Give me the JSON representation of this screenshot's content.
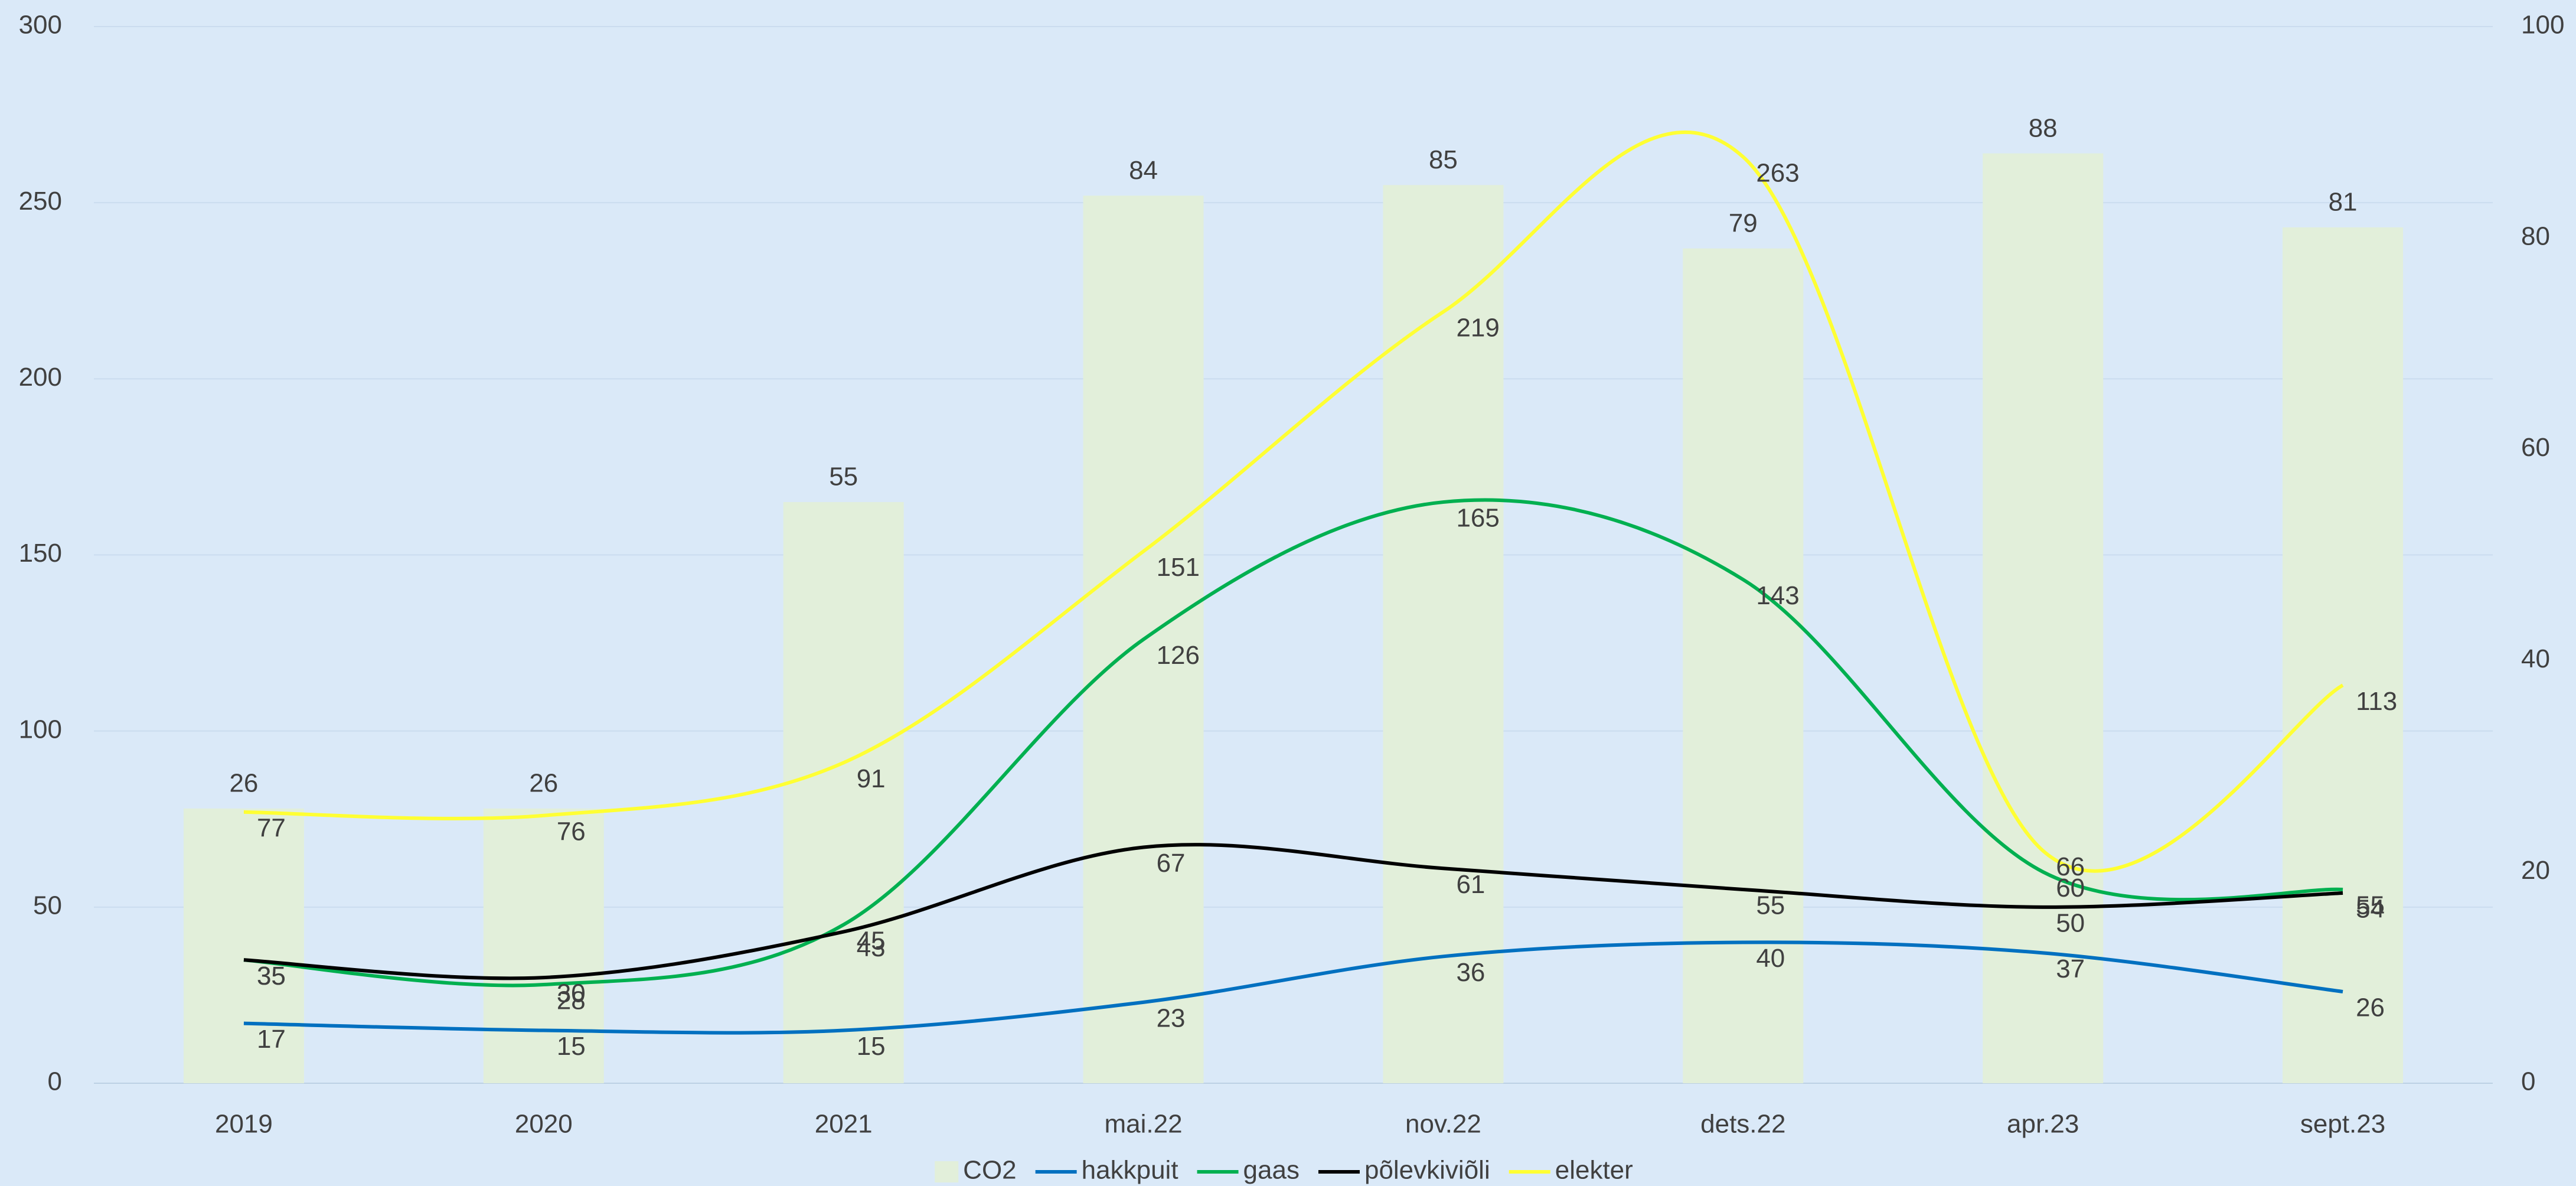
{
  "chart_data": {
    "type": "combo",
    "categories": [
      "2019",
      "2020",
      "2021",
      "mai.22",
      "nov.22",
      "dets.22",
      "apr.23",
      "sept.23"
    ],
    "series": [
      {
        "name": "CO2",
        "type": "bar",
        "axis": "y2",
        "color": "#e2efda",
        "values": [
          26,
          26,
          55,
          84,
          85,
          79,
          88,
          81
        ]
      },
      {
        "name": "hakkpuit",
        "type": "line",
        "color": "#0070c0",
        "values": [
          17,
          15,
          15,
          23,
          36,
          40,
          37,
          26
        ]
      },
      {
        "name": "gaas",
        "type": "line",
        "color": "#00b050",
        "values": [
          35,
          28,
          45,
          126,
          165,
          143,
          60,
          55
        ]
      },
      {
        "name": "põlevkiviõli",
        "type": "line",
        "color": "#000000",
        "values": [
          35,
          30,
          43,
          67,
          61,
          55,
          50,
          54
        ]
      },
      {
        "name": "elekter",
        "type": "line",
        "color": "#ffff33",
        "values": [
          77,
          76,
          91,
          151,
          219,
          263,
          66,
          113
        ]
      }
    ],
    "ylim": [
      0,
      300
    ],
    "yticks": [
      0,
      50,
      100,
      150,
      200,
      250,
      300
    ],
    "y2lim": [
      0,
      100
    ],
    "y2ticks": [
      0,
      20,
      40,
      60,
      80,
      100
    ],
    "grid": true,
    "legend": "bottom"
  }
}
